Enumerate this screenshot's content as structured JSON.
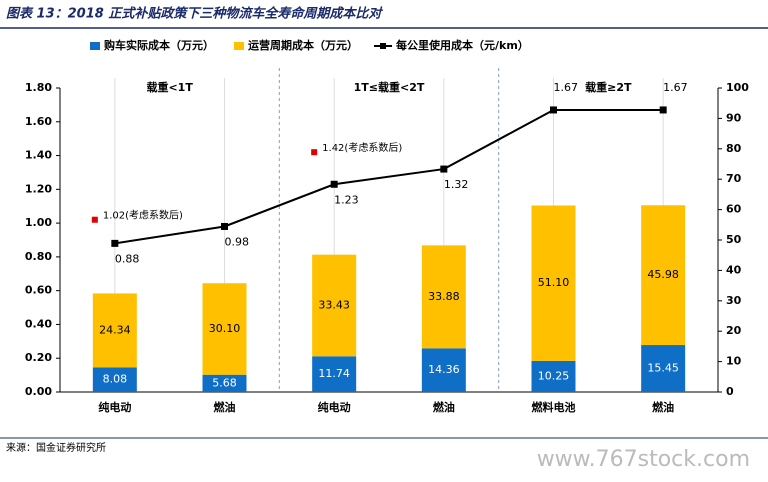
{
  "chart_data": {
    "type": "combo",
    "title": "图表 13：2018 正式补贴政策下三种物流车全寿命周期成本比对",
    "categories": [
      "纯电动",
      "燃油",
      "纯电动",
      "燃油",
      "燃料电池",
      "燃油"
    ],
    "groups": [
      "载重<1T",
      "1T≤载重<2T",
      "载重≥2T"
    ],
    "stacked": true,
    "series": [
      {
        "name": "购车实际成本（万元）",
        "type": "bar",
        "axis": "y2",
        "color": "#0f6fc6",
        "values": [
          8.08,
          5.68,
          11.74,
          14.36,
          10.25,
          15.45
        ]
      },
      {
        "name": "运营周期成本（万元）",
        "type": "bar",
        "axis": "y2",
        "color": "#ffc000",
        "values": [
          24.34,
          30.1,
          33.43,
          33.88,
          51.1,
          45.98
        ],
        "value_labels": [
          "24.34",
          "30.10",
          "33.43",
          "33.88",
          "51.10",
          "45.98"
        ]
      },
      {
        "name": "每公里使用成本（元/km）",
        "type": "line",
        "color": "#000000",
        "values": [
          0.88,
          0.98,
          1.23,
          1.32,
          1.67,
          1.67
        ]
      }
    ],
    "adjusted": {
      "color": "#e00000",
      "values": [
        1.02,
        null,
        1.42,
        null,
        null,
        null
      ],
      "value_labels": [
        "1.02(考虑系数后)",
        null,
        "1.42(考虑系数后)",
        null,
        null,
        null
      ]
    },
    "ylim": [
      0,
      1.8
    ],
    "yticks": [
      {
        "value": 0,
        "label": "0.00"
      },
      {
        "value": 0.2,
        "label": "0.20"
      },
      {
        "value": 0.4,
        "label": "0.40"
      },
      {
        "value": 0.6,
        "label": "0.60"
      },
      {
        "value": 0.8,
        "label": "0.80"
      },
      {
        "value": 1,
        "label": "1.00"
      },
      {
        "value": 1.2,
        "label": "1.20"
      },
      {
        "value": 1.4,
        "label": "1.40"
      },
      {
        "value": 1.6,
        "label": "1.60"
      },
      {
        "value": 1.8,
        "label": "1.80"
      }
    ],
    "y2lim": [
      0,
      100
    ],
    "y2ticks": [
      0,
      10,
      20,
      30,
      40,
      50,
      60,
      70,
      80,
      90,
      100
    ],
    "source": "来源：国金证券研究所",
    "watermark": "www.767stock.com"
  }
}
